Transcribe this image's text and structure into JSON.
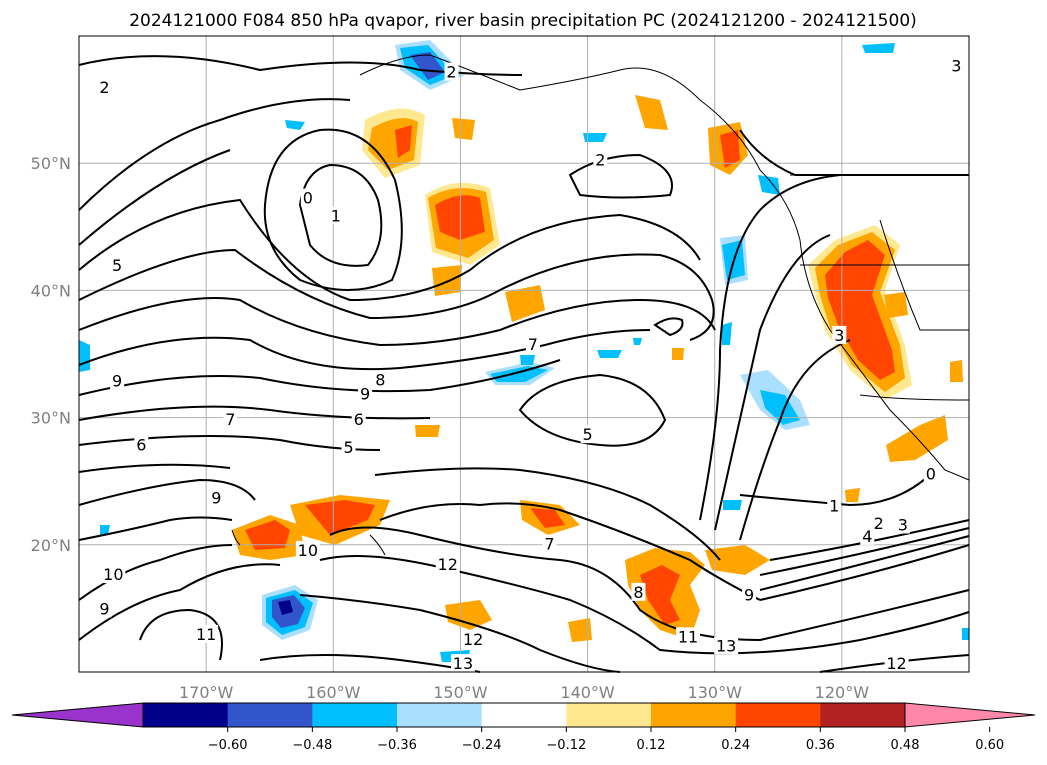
{
  "chart_data": {
    "type": "map-contour",
    "title": "2024121000 F084 850 hPa qvapor, river basin precipitation PC (2024121200 - 2024121500)",
    "x_ticks": [
      {
        "lon": -170,
        "label": "170°W"
      },
      {
        "lon": -160,
        "label": "160°W"
      },
      {
        "lon": -150,
        "label": "150°W"
      },
      {
        "lon": -140,
        "label": "140°W"
      },
      {
        "lon": -130,
        "label": "130°W"
      },
      {
        "lon": -120,
        "label": "120°W"
      }
    ],
    "y_ticks": [
      {
        "lat": 50,
        "label": "50°N"
      },
      {
        "lat": 40,
        "label": "40°N"
      },
      {
        "lat": 30,
        "label": "30°N"
      },
      {
        "lat": 20,
        "label": "20°N"
      }
    ],
    "lon_range": [
      -180,
      -110
    ],
    "lat_range": [
      10,
      60
    ],
    "grid": true,
    "colorbar": {
      "orientation": "horizontal",
      "extend": "both",
      "colors": [
        "#9933cc",
        "#00008b",
        "#3355cc",
        "#00bfff",
        "#aadfff",
        "#ffffff",
        "#ffe890",
        "#ffa500",
        "#ff4500",
        "#b22222",
        "#ff88aa"
      ],
      "tick_labels": [
        "−0.60",
        "−0.48",
        "−0.36",
        "−0.24",
        "−0.12",
        "0.12",
        "0.24",
        "0.36",
        "0.48",
        "0.60"
      ]
    },
    "contour_labels": [
      {
        "text": "2",
        "lon": -178,
        "lat": 56
      },
      {
        "text": "2",
        "lon": -150.7,
        "lat": 57.2
      },
      {
        "text": "2",
        "lon": -139,
        "lat": 50.3
      },
      {
        "text": "3",
        "lon": -111,
        "lat": 57.7
      },
      {
        "text": "0",
        "lon": -162,
        "lat": 47.3
      },
      {
        "text": "1",
        "lon": -159.8,
        "lat": 45.9
      },
      {
        "text": "5",
        "lon": -177,
        "lat": 42
      },
      {
        "text": "9",
        "lon": -177,
        "lat": 32.9
      },
      {
        "text": "9",
        "lon": -157.5,
        "lat": 31.9
      },
      {
        "text": "8",
        "lon": -156.3,
        "lat": 33
      },
      {
        "text": "7",
        "lon": -144.3,
        "lat": 35.8
      },
      {
        "text": "7",
        "lon": -168.1,
        "lat": 29.9
      },
      {
        "text": "6",
        "lon": -158,
        "lat": 29.9
      },
      {
        "text": "6",
        "lon": -175.1,
        "lat": 27.9
      },
      {
        "text": "5",
        "lon": -158.8,
        "lat": 27.7
      },
      {
        "text": "5",
        "lon": -140,
        "lat": 28.7
      },
      {
        "text": "9",
        "lon": -169.2,
        "lat": 23.7
      },
      {
        "text": "10",
        "lon": -162,
        "lat": 19.6
      },
      {
        "text": "10",
        "lon": -177.3,
        "lat": 17.7
      },
      {
        "text": "9",
        "lon": -178,
        "lat": 15
      },
      {
        "text": "11",
        "lon": -170,
        "lat": 13
      },
      {
        "text": "12",
        "lon": -151,
        "lat": 18.5
      },
      {
        "text": "12",
        "lon": -149,
        "lat": 12.6
      },
      {
        "text": "13",
        "lon": -149.8,
        "lat": 10.7
      },
      {
        "text": "7",
        "lon": -143,
        "lat": 20.1
      },
      {
        "text": "8",
        "lon": -136,
        "lat": 16.3
      },
      {
        "text": "11",
        "lon": -132.1,
        "lat": 12.8
      },
      {
        "text": "13",
        "lon": -129.1,
        "lat": 12.1
      },
      {
        "text": "9",
        "lon": -127.3,
        "lat": 16.1
      },
      {
        "text": "12",
        "lon": -115.7,
        "lat": 10.7
      },
      {
        "text": "1",
        "lon": -120.6,
        "lat": 23.1
      },
      {
        "text": "2",
        "lon": -117.1,
        "lat": 21.7
      },
      {
        "text": "3",
        "lon": -115.2,
        "lat": 21.6
      },
      {
        "text": "4",
        "lon": -118,
        "lat": 20.7
      },
      {
        "text": "0",
        "lon": -113,
        "lat": 25.6
      },
      {
        "text": "3",
        "lon": -120.2,
        "lat": 36.5
      }
    ]
  }
}
